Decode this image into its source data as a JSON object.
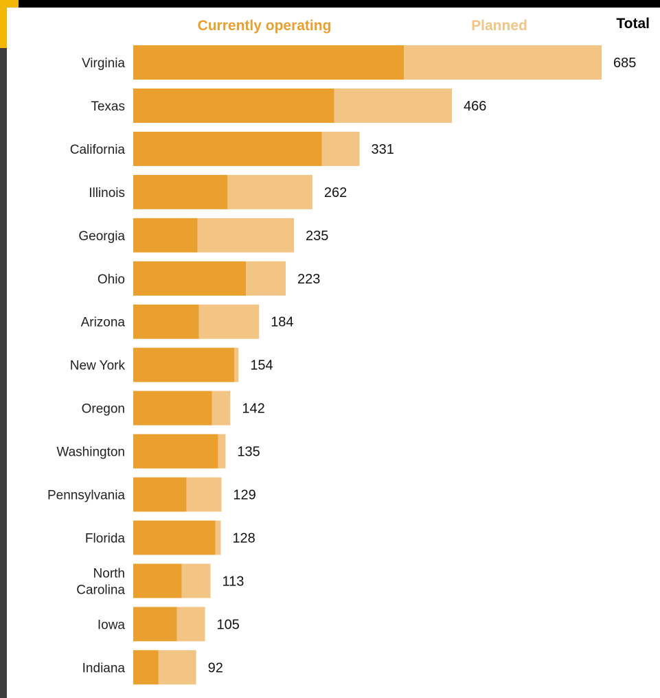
{
  "chart_data": {
    "type": "bar",
    "orientation": "horizontal",
    "stacked": true,
    "grid": false,
    "legend_position": "top",
    "categories": [
      "Virginia",
      "Texas",
      "California",
      "Illinois",
      "Georgia",
      "Ohio",
      "Arizona",
      "New York",
      "Oregon",
      "Washington",
      "Pennsylvania",
      "Florida",
      "North Carolina",
      "Iowa",
      "Indiana"
    ],
    "category_lines": [
      [
        "Virginia"
      ],
      [
        "Texas"
      ],
      [
        "California"
      ],
      [
        "Illinois"
      ],
      [
        "Georgia"
      ],
      [
        "Ohio"
      ],
      [
        "Arizona"
      ],
      [
        "New York"
      ],
      [
        "Oregon"
      ],
      [
        "Washington"
      ],
      [
        "Pennsylvania"
      ],
      [
        "Florida"
      ],
      [
        "North",
        "Carolina"
      ],
      [
        "Iowa"
      ],
      [
        "Indiana"
      ]
    ],
    "series": [
      {
        "name": "Currently operating",
        "color": "#e9a02f",
        "values": [
          396,
          294,
          276,
          138,
          94,
          165,
          96,
          148,
          115,
          124,
          78,
          120,
          71,
          64,
          37
        ]
      },
      {
        "name": "Planned",
        "color": "#f2c585",
        "values": [
          289,
          172,
          55,
          124,
          141,
          58,
          88,
          6,
          27,
          11,
          51,
          8,
          42,
          41,
          55
        ]
      }
    ],
    "total_header": "Total",
    "totals": [
      685,
      466,
      331,
      262,
      235,
      223,
      184,
      154,
      142,
      135,
      129,
      128,
      113,
      105,
      92
    ],
    "xlim": [
      0,
      700
    ]
  }
}
